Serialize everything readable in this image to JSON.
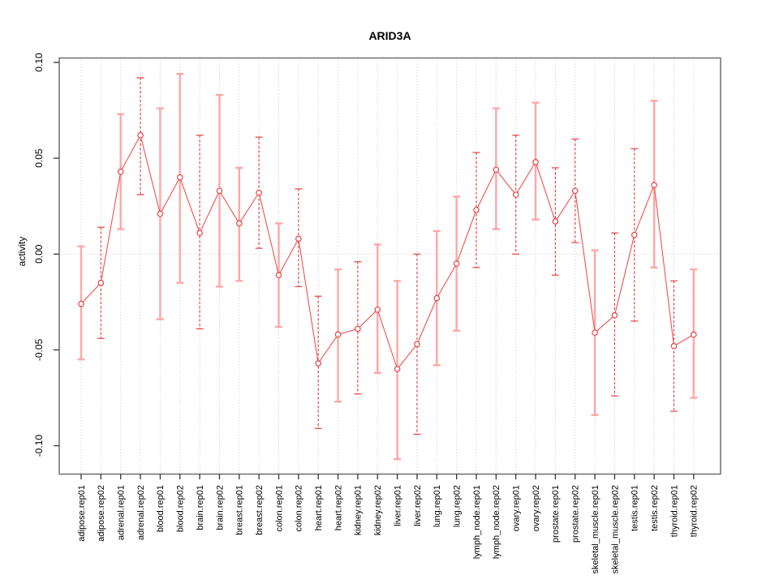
{
  "page": {
    "background": "#ffffff"
  },
  "chart_data": {
    "type": "line",
    "title": "ARID3A",
    "ylabel": "activity",
    "xlabel": "",
    "legend": "none",
    "grid": "vertical dotted gridlines per category; dotted horizontal line at y=0",
    "ylim": [
      -0.1148,
      0.1023
    ],
    "ytick_labels": [
      "0.10",
      "0.05",
      "0.00",
      "-0.05",
      "-0.10"
    ],
    "ytick_values": [
      0.1,
      0.05,
      0.0,
      -0.05,
      -0.1
    ],
    "categories": [
      "adipose.rep01",
      "adipose.rep02",
      "adrenal.rep01",
      "adrenal.rep02",
      "blood.rep01",
      "blood.rep02",
      "brain.rep01",
      "brain.rep02",
      "breast.rep01",
      "breast.rep02",
      "colon.rep01",
      "colon.rep02",
      "heart.rep01",
      "heart.rep02",
      "kidney.rep01",
      "kidney.rep02",
      "liver.rep01",
      "liver.rep02",
      "lung.rep01",
      "lung.rep02",
      "lymph_node.rep01",
      "lymph_node.rep02",
      "ovary.rep01",
      "ovary.rep02",
      "prostate.rep01",
      "prostate.rep02",
      "skeletal_muscle.rep01",
      "skeletal_muscle.rep02",
      "testis.rep01",
      "testis.rep02",
      "thyroid.rep01",
      "thyroid.rep02"
    ],
    "series": [
      {
        "name": "activity",
        "values": [
          -0.026,
          -0.015,
          0.043,
          0.062,
          0.021,
          0.04,
          0.011,
          0.033,
          0.016,
          0.032,
          -0.011,
          0.008,
          -0.057,
          -0.042,
          -0.039,
          -0.029,
          -0.06,
          -0.047,
          -0.023,
          -0.005,
          0.023,
          0.044,
          0.031,
          0.048,
          0.017,
          0.033,
          -0.041,
          -0.032,
          0.01,
          0.036,
          -0.048,
          -0.042
        ],
        "error_upper": [
          0.004,
          0.014,
          0.073,
          0.092,
          0.076,
          0.094,
          0.062,
          0.083,
          0.045,
          0.061,
          0.016,
          0.034,
          -0.022,
          -0.008,
          -0.004,
          0.005,
          -0.014,
          0.0,
          0.012,
          0.03,
          0.053,
          0.076,
          0.062,
          0.079,
          0.045,
          0.06,
          0.002,
          0.011,
          0.055,
          0.08,
          -0.014,
          -0.008
        ],
        "error_lower": [
          -0.055,
          -0.044,
          0.013,
          0.031,
          -0.034,
          -0.015,
          -0.039,
          -0.017,
          -0.014,
          0.003,
          -0.038,
          -0.017,
          -0.091,
          -0.077,
          -0.073,
          -0.062,
          -0.107,
          -0.094,
          -0.058,
          -0.04,
          -0.007,
          0.013,
          0.0,
          0.018,
          -0.011,
          0.006,
          -0.084,
          -0.074,
          -0.035,
          -0.007,
          -0.082,
          -0.075
        ],
        "bar_styles": [
          "solid",
          "dashed",
          "solid",
          "dashed",
          "solid",
          "solid",
          "dashed",
          "solid",
          "solid",
          "dashed",
          "solid",
          "dashed",
          "dashed",
          "solid",
          "dashed",
          "solid",
          "solid",
          "dashed",
          "solid",
          "solid",
          "dashed",
          "solid",
          "dashed",
          "solid",
          "dashed",
          "dashed",
          "solid",
          "dashed",
          "dashed",
          "solid",
          "dashed",
          "solid"
        ]
      }
    ],
    "colors": {
      "line": "#f05050",
      "point_stroke": "#e84343",
      "bar_solid": "#ffa6a6",
      "bar_dashed": "#e84343",
      "grid": "#c9c9c9",
      "zero_line": "#c9c9c9",
      "box": "#6e6e6e",
      "tick": "#333333",
      "text": "#000000"
    }
  }
}
